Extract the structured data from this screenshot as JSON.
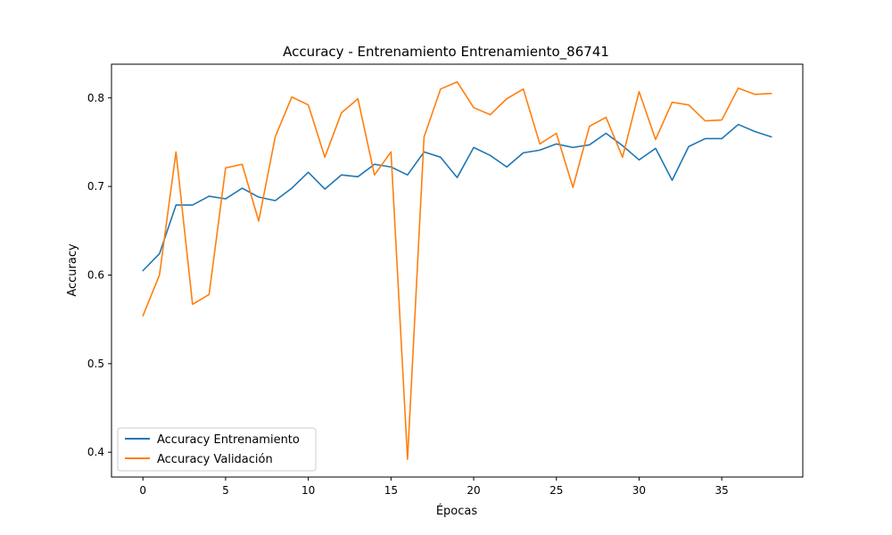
{
  "chart_data": {
    "type": "line",
    "title": "Accuracy - Entrenamiento Entrenamiento_86741",
    "xlabel": "Épocas",
    "ylabel": "Accuracy",
    "xlim": [
      -1.9,
      39.9
    ],
    "ylim": [
      0.372,
      0.838
    ],
    "xticks": [
      0,
      5,
      10,
      15,
      20,
      25,
      30,
      35
    ],
    "yticks": [
      0.4,
      0.5,
      0.6,
      0.7,
      0.8
    ],
    "x": [
      0,
      1,
      2,
      3,
      4,
      5,
      6,
      7,
      8,
      9,
      10,
      11,
      12,
      13,
      14,
      15,
      16,
      17,
      18,
      19,
      20,
      21,
      22,
      23,
      24,
      25,
      26,
      27,
      28,
      29,
      30,
      31,
      32,
      33,
      34,
      35,
      36,
      37,
      38
    ],
    "series": [
      {
        "name": "Accuracy Entrenamiento",
        "color": "#1f77b4",
        "values": [
          0.605,
          0.624,
          0.679,
          0.679,
          0.689,
          0.686,
          0.698,
          0.688,
          0.684,
          0.698,
          0.716,
          0.697,
          0.713,
          0.711,
          0.725,
          0.722,
          0.713,
          0.739,
          0.733,
          0.71,
          0.744,
          0.735,
          0.722,
          0.738,
          0.741,
          0.748,
          0.744,
          0.747,
          0.76,
          0.746,
          0.73,
          0.743,
          0.707,
          0.745,
          0.754,
          0.754,
          0.77,
          0.762,
          0.756
        ]
      },
      {
        "name": "Accuracy Validación",
        "color": "#ff7f0e",
        "values": [
          0.554,
          0.6,
          0.739,
          0.567,
          0.578,
          0.721,
          0.725,
          0.661,
          0.756,
          0.801,
          0.792,
          0.733,
          0.783,
          0.799,
          0.713,
          0.739,
          0.392,
          0.756,
          0.81,
          0.818,
          0.789,
          0.781,
          0.799,
          0.81,
          0.748,
          0.76,
          0.699,
          0.768,
          0.778,
          0.733,
          0.807,
          0.753,
          0.795,
          0.792,
          0.774,
          0.775,
          0.811,
          0.804,
          0.805
        ]
      }
    ],
    "grid": false,
    "legend_position": "lower-left"
  }
}
